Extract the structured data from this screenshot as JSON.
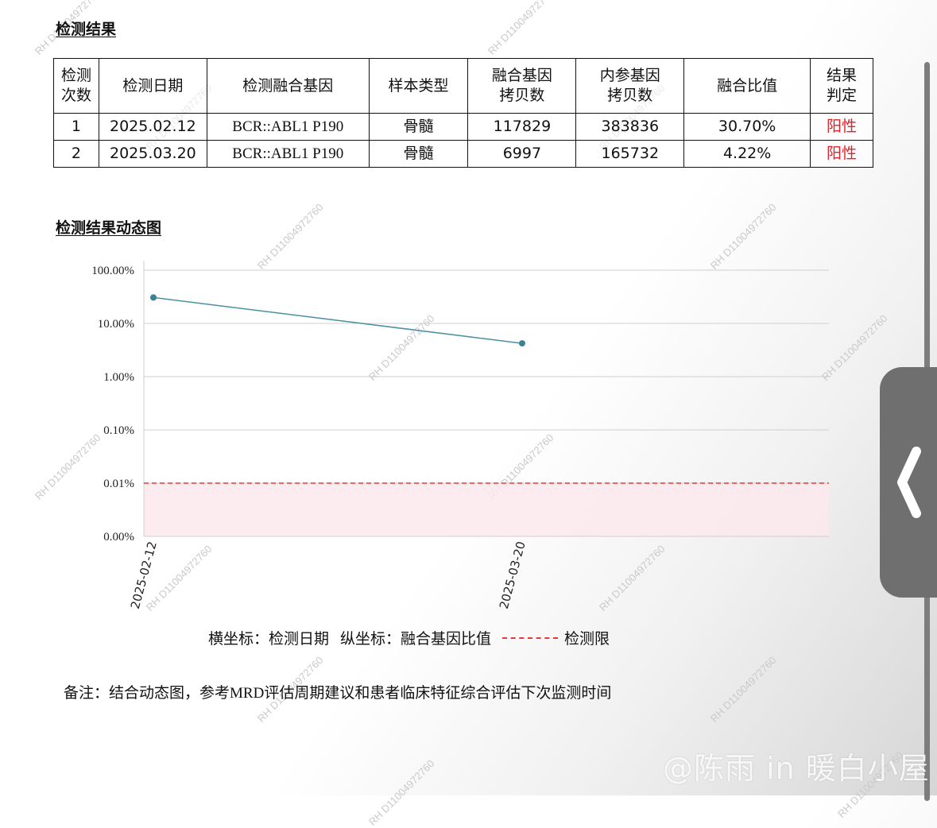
{
  "section1_title": "检测结果",
  "table": {
    "headers": [
      "检测\n次数",
      "检测日期",
      "检测融合基因",
      "样本类型",
      "融合基因\n拷贝数",
      "内参基因\n拷贝数",
      "融合比值",
      "结果\n判定"
    ],
    "rows": [
      {
        "no": "1",
        "date": "2025.02.12",
        "gene": "BCR::ABL1 P190",
        "sample": "骨髓",
        "fusion_copies": "117829",
        "ref_copies": "383836",
        "ratio": "30.70%",
        "result": "阳性"
      },
      {
        "no": "2",
        "date": "2025.03.20",
        "gene": "BCR::ABL1 P190",
        "sample": "骨髓",
        "fusion_copies": "6997",
        "ref_copies": "165732",
        "ratio": "4.22%",
        "result": "阳性"
      }
    ]
  },
  "section2_title": "检测结果动态图",
  "chart_data": {
    "type": "line",
    "y_scale": "log",
    "y_ticks": [
      "100.00%",
      "10.00%",
      "1.00%",
      "0.10%",
      "0.01%",
      "0.00%"
    ],
    "x": [
      "2025-02-12",
      "2025-03-20"
    ],
    "series": [
      {
        "values": [
          30.7,
          4.22
        ]
      }
    ],
    "detection_limit": 0.01,
    "grid": true
  },
  "legend": {
    "x_axis": "横坐标：检测日期",
    "y_axis": "纵坐标：融合基因比值",
    "limit": "检测限"
  },
  "note": {
    "prefix": "备注：结合动态图，参考",
    "mrd": "MRD",
    "suffix": "评估周期建议和患者临床特征综合评估下次监测时间"
  },
  "watermark_text": "RH D11004972760",
  "overlay_text": "@陈雨 in 暖白小屋",
  "colors": {
    "series": "#4a90a4",
    "limit": "#e53a3a",
    "positive": "#e0222a"
  }
}
